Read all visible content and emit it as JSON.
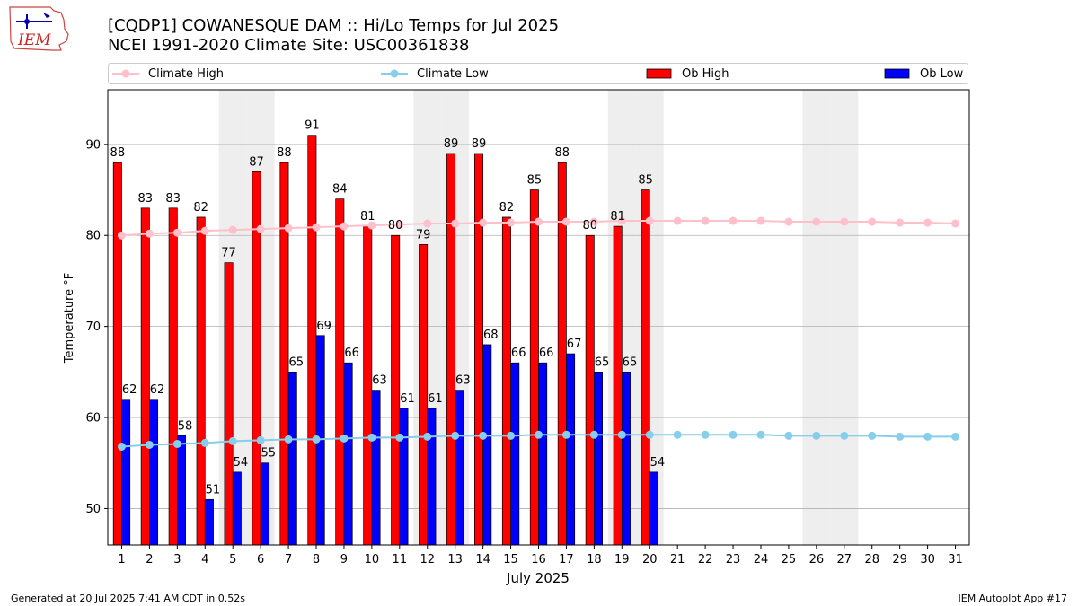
{
  "header": {
    "title_line1": "[CQDP1] COWANESQUE DAM :: Hi/Lo Temps for Jul 2025",
    "title_line2": "NCEI 1991-2020 Climate Site: USC00361838",
    "logo_text": "IEM"
  },
  "legend": {
    "items": [
      {
        "label": "Climate High",
        "color": "#ffc0cb",
        "kind": "line"
      },
      {
        "label": "Climate Low",
        "color": "#87ceeb",
        "kind": "line"
      },
      {
        "label": "Ob High",
        "color": "#ff0000",
        "kind": "box"
      },
      {
        "label": "Ob Low",
        "color": "#0000ff",
        "kind": "box"
      }
    ]
  },
  "footer": {
    "left": "Generated at 20 Jul 2025 7:41 AM CDT in 0.52s",
    "right": "IEM Autoplot App #17"
  },
  "chart_data": {
    "type": "bar",
    "xlabel": "July 2025",
    "ylabel": "Temperature °F",
    "ylim": [
      46,
      96
    ],
    "yticks": [
      50,
      60,
      70,
      80,
      90
    ],
    "grid": "horizontal",
    "days": [
      1,
      2,
      3,
      4,
      5,
      6,
      7,
      8,
      9,
      10,
      11,
      12,
      13,
      14,
      15,
      16,
      17,
      18,
      19,
      20,
      21,
      22,
      23,
      24,
      25,
      26,
      27,
      28,
      29,
      30,
      31
    ],
    "weekend_days": [
      5,
      6,
      12,
      13,
      19,
      20,
      26,
      27
    ],
    "series": [
      {
        "name": "Ob High",
        "color": "#ff0000",
        "values": [
          88,
          83,
          83,
          82,
          77,
          87,
          88,
          91,
          84,
          81,
          80,
          79,
          89,
          89,
          82,
          85,
          88,
          80,
          81,
          85
        ]
      },
      {
        "name": "Ob Low",
        "color": "#0000ff",
        "values": [
          62,
          62,
          58,
          51,
          54,
          55,
          65,
          69,
          66,
          63,
          61,
          61,
          63,
          68,
          66,
          66,
          67,
          65,
          65,
          54
        ]
      },
      {
        "name": "Climate High",
        "color": "#ffc0cb",
        "values": [
          80.0,
          80.2,
          80.3,
          80.5,
          80.6,
          80.7,
          80.8,
          80.9,
          81.0,
          81.1,
          81.2,
          81.3,
          81.3,
          81.4,
          81.4,
          81.5,
          81.5,
          81.5,
          81.6,
          81.6,
          81.6,
          81.6,
          81.6,
          81.6,
          81.5,
          81.5,
          81.5,
          81.5,
          81.4,
          81.4,
          81.3
        ]
      },
      {
        "name": "Climate Low",
        "color": "#87ceeb",
        "values": [
          56.8,
          57.0,
          57.1,
          57.2,
          57.4,
          57.5,
          57.6,
          57.6,
          57.7,
          57.8,
          57.8,
          57.9,
          58.0,
          58.0,
          58.0,
          58.1,
          58.1,
          58.1,
          58.1,
          58.1,
          58.1,
          58.1,
          58.1,
          58.1,
          58.0,
          58.0,
          58.0,
          58.0,
          57.9,
          57.9,
          57.9
        ]
      }
    ]
  }
}
